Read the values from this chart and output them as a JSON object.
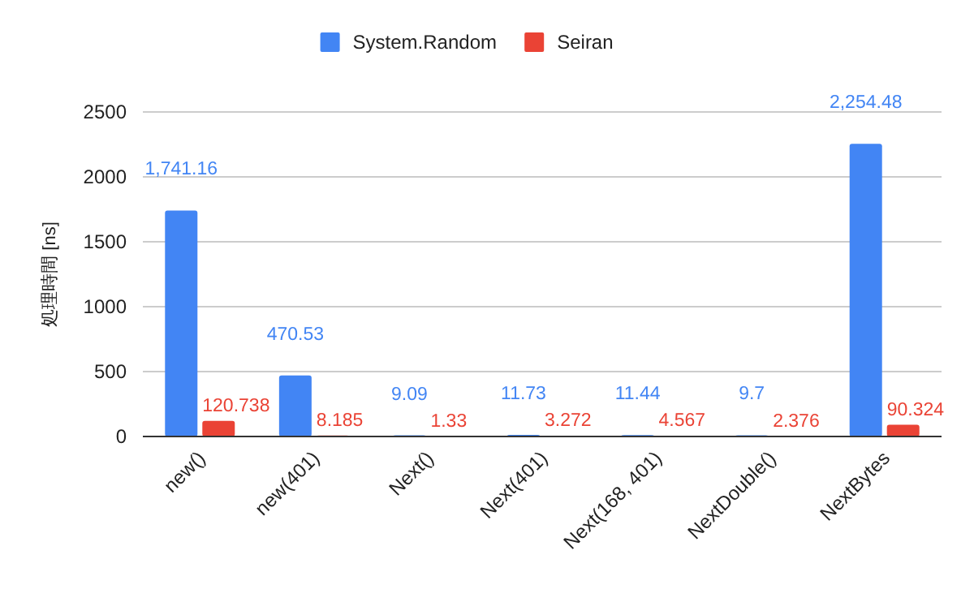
{
  "chart_data": {
    "type": "bar",
    "ylabel": "処理時間 [ns]",
    "categories": [
      "new()",
      "new(401)",
      "Next()",
      "Next(401)",
      "Next(168, 401)",
      "NextDouble()",
      "NextBytes"
    ],
    "series": [
      {
        "name": "System.Random",
        "color": "#4285f4",
        "values": [
          1741.16,
          470.53,
          9.09,
          11.73,
          11.44,
          9.7,
          2254.48
        ],
        "value_labels": [
          "1,741.16",
          "470.53",
          "9.09",
          "11.73",
          "11.44",
          "9.7",
          "2,254.48"
        ]
      },
      {
        "name": "Seiran",
        "color": "#ea4335",
        "values": [
          120.738,
          8.185,
          1.33,
          3.272,
          4.567,
          2.376,
          90.324
        ],
        "value_labels": [
          "120.738",
          "8.185",
          "1.33",
          "3.272",
          "4.567",
          "2.376",
          "90.324"
        ]
      }
    ],
    "ylim": [
      0,
      2500
    ],
    "yticks": [
      0,
      500,
      1000,
      1500,
      2000,
      2500
    ],
    "grid": "y",
    "legend": "top"
  }
}
